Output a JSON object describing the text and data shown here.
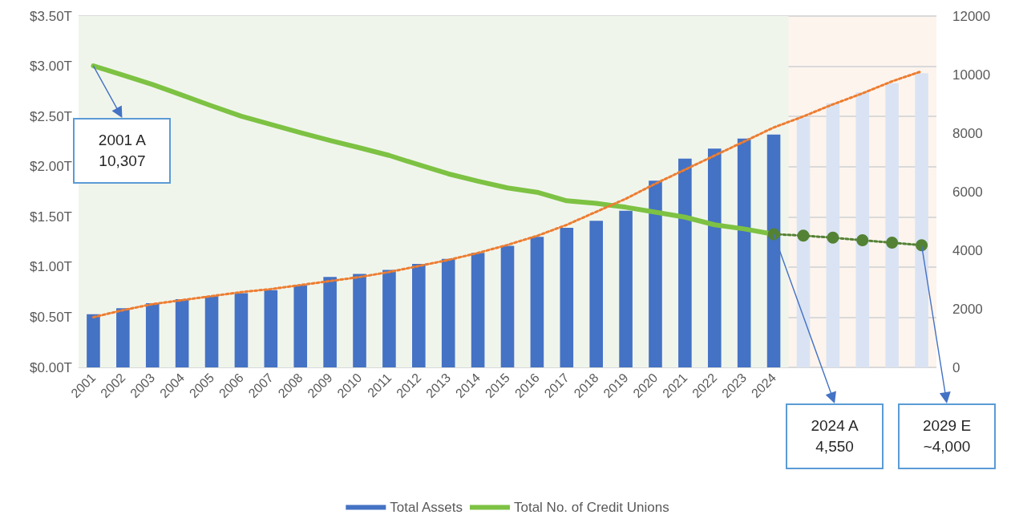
{
  "chart_data": {
    "type": "bar",
    "categories": [
      "2001",
      "2002",
      "2003",
      "2004",
      "2005",
      "2006",
      "2007",
      "2008",
      "2009",
      "2010",
      "2011",
      "2012",
      "2013",
      "2014",
      "2015",
      "2016",
      "2017",
      "2018",
      "2019",
      "2020",
      "2021",
      "2022",
      "2023",
      "2024",
      null,
      null,
      null,
      null,
      null
    ],
    "series": [
      {
        "name": "Total Assets",
        "colors": [
          "#4472c4",
          "#4472c4",
          "#4472c4",
          "#4472c4",
          "#4472c4",
          "#4472c4",
          "#4472c4",
          "#4472c4",
          "#4472c4",
          "#4472c4",
          "#4472c4",
          "#4472c4",
          "#4472c4",
          "#4472c4",
          "#4472c4",
          "#4472c4",
          "#4472c4",
          "#4472c4",
          "#4472c4",
          "#4472c4",
          "#4472c4",
          "#4472c4",
          "#4472c4",
          "#4472c4",
          "#dae3f3",
          "#dae3f3",
          "#dae3f3",
          "#dae3f3",
          "#dae3f3"
        ],
        "values": [
          0.53,
          0.59,
          0.64,
          0.68,
          0.71,
          0.74,
          0.77,
          0.82,
          0.9,
          0.93,
          0.97,
          1.03,
          1.08,
          1.14,
          1.21,
          1.3,
          1.39,
          1.46,
          1.56,
          1.86,
          2.08,
          2.18,
          2.28,
          2.32,
          2.49,
          2.63,
          2.74,
          2.83,
          2.93
        ]
      },
      {
        "name": "Total No. of Credit Unions",
        "type": "line",
        "axis": "y2",
        "color": "#7dc243",
        "marker": "none",
        "line_style": "solid",
        "values": [
          10300,
          9980,
          9660,
          9300,
          8930,
          8580,
          8300,
          8020,
          7750,
          7500,
          7240,
          6920,
          6610,
          6360,
          6130,
          5980,
          5690,
          5600,
          5470,
          5300,
          5130,
          4870,
          4730,
          4550,
          null,
          null,
          null,
          null,
          null
        ]
      },
      {
        "type": "line",
        "axis": "y2",
        "color": "#548235",
        "marker": "circle",
        "line_style": "dotted",
        "values": [
          null,
          null,
          null,
          null,
          null,
          null,
          null,
          null,
          null,
          null,
          null,
          null,
          null,
          null,
          null,
          null,
          null,
          null,
          null,
          null,
          null,
          null,
          null,
          4550,
          4500,
          4430,
          4340,
          4260,
          4170
        ]
      },
      {
        "type": "line",
        "color": "#ed7d31",
        "marker": "none",
        "line_style": "dotted",
        "values": [
          0.5,
          0.57,
          0.63,
          0.67,
          0.71,
          0.75,
          0.78,
          0.82,
          0.86,
          0.9,
          0.95,
          1.01,
          1.07,
          1.14,
          1.22,
          1.31,
          1.42,
          1.55,
          1.68,
          1.83,
          1.97,
          2.11,
          2.25,
          2.39,
          2.5,
          2.62,
          2.73,
          2.85,
          2.95
        ]
      }
    ],
    "ylim": [
      0,
      3.5
    ],
    "yticks": [
      {
        "value": 0,
        "label": "$0.00T"
      },
      {
        "value": 0.5,
        "label": "$0.50T"
      },
      {
        "value": 1,
        "label": "$1.00T"
      },
      {
        "value": 1.5,
        "label": "$1.50T"
      },
      {
        "value": 2,
        "label": "$2.00T"
      },
      {
        "value": 2.5,
        "label": "$2.50T"
      },
      {
        "value": 3,
        "label": "$3.00T"
      },
      {
        "value": 3.5,
        "label": "$3.50T"
      }
    ],
    "y2lim": [
      0,
      12000
    ],
    "y2ticks": [
      0,
      2000,
      4000,
      6000,
      8000,
      10000,
      12000
    ],
    "bands": [
      {
        "axis": "x",
        "from": "2001",
        "to": "2024",
        "color": "#f0f5ec"
      }
    ],
    "annotations": [
      "2001 A\n10,307",
      "2024 A\n4,550",
      "2029 E\n~4,000"
    ],
    "grid": "y",
    "legend": "bottom"
  }
}
